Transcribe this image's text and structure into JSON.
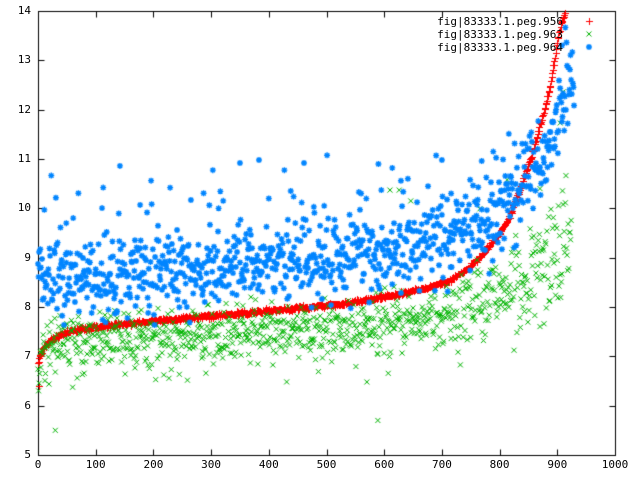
{
  "figure": {
    "background": "#ffffff",
    "axis_color": "#000000",
    "text_color": "#000000"
  },
  "chart_data": {
    "type": "scatter",
    "title": "",
    "xlabel": "",
    "ylabel": "",
    "xlim": [
      0,
      1000
    ],
    "ylim": [
      5,
      14
    ],
    "x_ticks": [
      "0",
      "100",
      "200",
      "300",
      "400",
      "500",
      "600",
      "700",
      "800",
      "900",
      "1000"
    ],
    "y_ticks": [
      "5",
      "6",
      "7",
      "8",
      "9",
      "10",
      "11",
      "12",
      "13",
      "14"
    ],
    "grid": false,
    "tick_style": "inward-mirrored",
    "legend_position": "top-right-inside",
    "series": [
      {
        "name": "fig|83333.1.peg.956",
        "color": "#ff0000",
        "marker": "plus",
        "n_points": 915,
        "seed": 11,
        "sigma": 0.022,
        "sigma_tail": 0.022,
        "outlier_rate": 0,
        "outlier_sign": 1,
        "outlier_min": 0,
        "outlier_max": 0,
        "outlier_t_max": 0,
        "curve": [
          [
            0,
            6.85
          ],
          [
            2,
            6.96
          ],
          [
            5,
            7.06
          ],
          [
            10,
            7.18
          ],
          [
            18,
            7.3
          ],
          [
            30,
            7.4
          ],
          [
            50,
            7.5
          ],
          [
            90,
            7.58
          ],
          [
            150,
            7.66
          ],
          [
            220,
            7.74
          ],
          [
            300,
            7.82
          ],
          [
            380,
            7.9
          ],
          [
            460,
            7.99
          ],
          [
            540,
            8.09
          ],
          [
            620,
            8.25
          ],
          [
            670,
            8.38
          ],
          [
            710,
            8.52
          ],
          [
            745,
            8.78
          ],
          [
            765,
            9.0
          ],
          [
            785,
            9.28
          ],
          [
            800,
            9.5
          ],
          [
            818,
            9.85
          ],
          [
            832,
            10.3
          ],
          [
            845,
            10.7
          ],
          [
            856,
            11.1
          ],
          [
            868,
            11.6
          ],
          [
            878,
            12.0
          ],
          [
            888,
            12.5
          ],
          [
            896,
            13.1
          ],
          [
            903,
            13.55
          ],
          [
            909,
            13.82
          ],
          [
            914,
            13.98
          ]
        ],
        "outliers": [
          [
            2,
            6.4
          ]
        ]
      },
      {
        "name": "fig|83333.1.peg.963",
        "color": "#00b400",
        "marker": "cross",
        "n_points": 925,
        "seed": 22,
        "sigma": 0.27,
        "sigma_tail": 0.55,
        "outlier_rate": 0.05,
        "outlier_sign": -1,
        "outlier_min": 0.3,
        "outlier_max": 1.1,
        "outlier_t_max": 0.85,
        "curve": [
          [
            0,
            7.1
          ],
          [
            30,
            7.22
          ],
          [
            100,
            7.3
          ],
          [
            250,
            7.42
          ],
          [
            400,
            7.52
          ],
          [
            550,
            7.62
          ],
          [
            650,
            7.75
          ],
          [
            720,
            7.88
          ],
          [
            780,
            8.05
          ],
          [
            830,
            8.3
          ],
          [
            870,
            8.7
          ],
          [
            900,
            9.2
          ],
          [
            924,
            9.7
          ]
        ],
        "outliers": [
          [
            30,
            5.5
          ],
          [
            570,
            6.48
          ],
          [
            589,
            5.7
          ],
          [
            610,
            10.37
          ],
          [
            626,
            10.37
          ],
          [
            646,
            10.15
          ],
          [
            766,
            9.99
          ],
          [
            813,
            10.58
          ],
          [
            870,
            10.4
          ],
          [
            905,
            11.73
          ],
          [
            910,
            12.36
          ]
        ]
      },
      {
        "name": "fig|83333.1.peg.964",
        "color": "#0085ff",
        "marker": "star",
        "n_points": 930,
        "seed": 33,
        "sigma": 0.4,
        "sigma_tail": 0.55,
        "outlier_rate": 0.04,
        "outlier_sign": 1,
        "outlier_min": 0.5,
        "outlier_max": 2.2,
        "outlier_t_max": 0.78,
        "curve": [
          [
            0,
            8.5
          ],
          [
            60,
            8.56
          ],
          [
            150,
            8.63
          ],
          [
            300,
            8.76
          ],
          [
            450,
            8.9
          ],
          [
            580,
            9.06
          ],
          [
            680,
            9.28
          ],
          [
            740,
            9.55
          ],
          [
            790,
            9.95
          ],
          [
            830,
            10.45
          ],
          [
            860,
            10.85
          ],
          [
            885,
            11.3
          ],
          [
            905,
            11.9
          ],
          [
            920,
            12.5
          ],
          [
            929,
            13.0
          ]
        ],
        "outliers": [
          [
            49,
            9.7
          ],
          [
            113,
            10.42
          ],
          [
            142,
            10.86
          ],
          [
            177,
            10.07
          ],
          [
            265,
            10.17
          ],
          [
            313,
            10.0
          ],
          [
            350,
            10.92
          ],
          [
            383,
            10.98
          ],
          [
            438,
            10.35
          ],
          [
            478,
            10.03
          ],
          [
            496,
            10.05
          ],
          [
            560,
            10.3
          ],
          [
            590,
            10.9
          ],
          [
            614,
            10.82
          ],
          [
            629,
            10.56
          ],
          [
            641,
            10.6
          ],
          [
            700,
            10.98
          ],
          [
            716,
            10.3
          ],
          [
            749,
            10.58
          ],
          [
            769,
            10.96
          ],
          [
            789,
            11.15
          ],
          [
            816,
            11.51
          ],
          [
            908,
            13.3
          ]
        ]
      }
    ]
  }
}
